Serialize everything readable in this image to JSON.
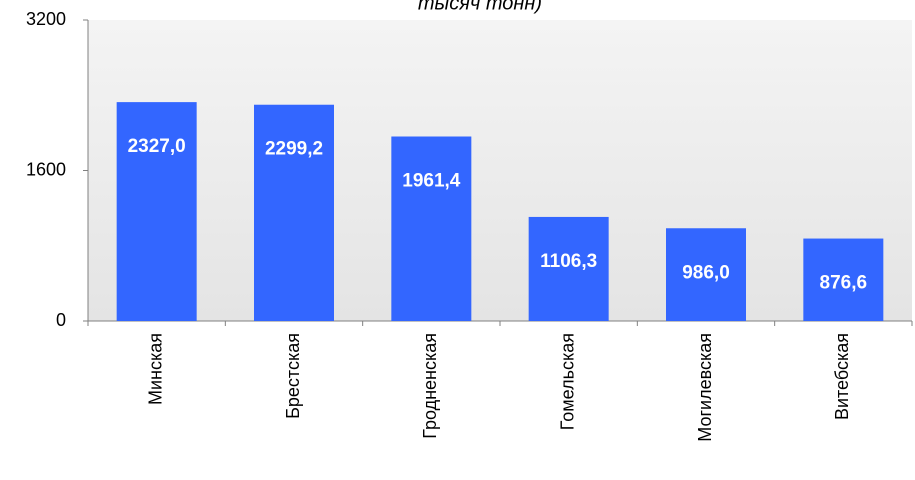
{
  "chart_data": {
    "type": "bar",
    "title": "тысяч тонн)",
    "categories": [
      "Минская",
      "Брестская",
      "Гродненская",
      "Гомельская",
      "Могилевская",
      "Витебская"
    ],
    "values": [
      2327.0,
      2299.2,
      1961.4,
      1106.3,
      986.0,
      876.6
    ],
    "value_labels": [
      "2327,0",
      "2299,2",
      "1961,4",
      "1106,3",
      "986,0",
      "876,6"
    ],
    "color": "#3366ff",
    "ylim": [
      0,
      3200
    ],
    "yticks": [
      0,
      1600,
      3200
    ],
    "grid": false
  }
}
